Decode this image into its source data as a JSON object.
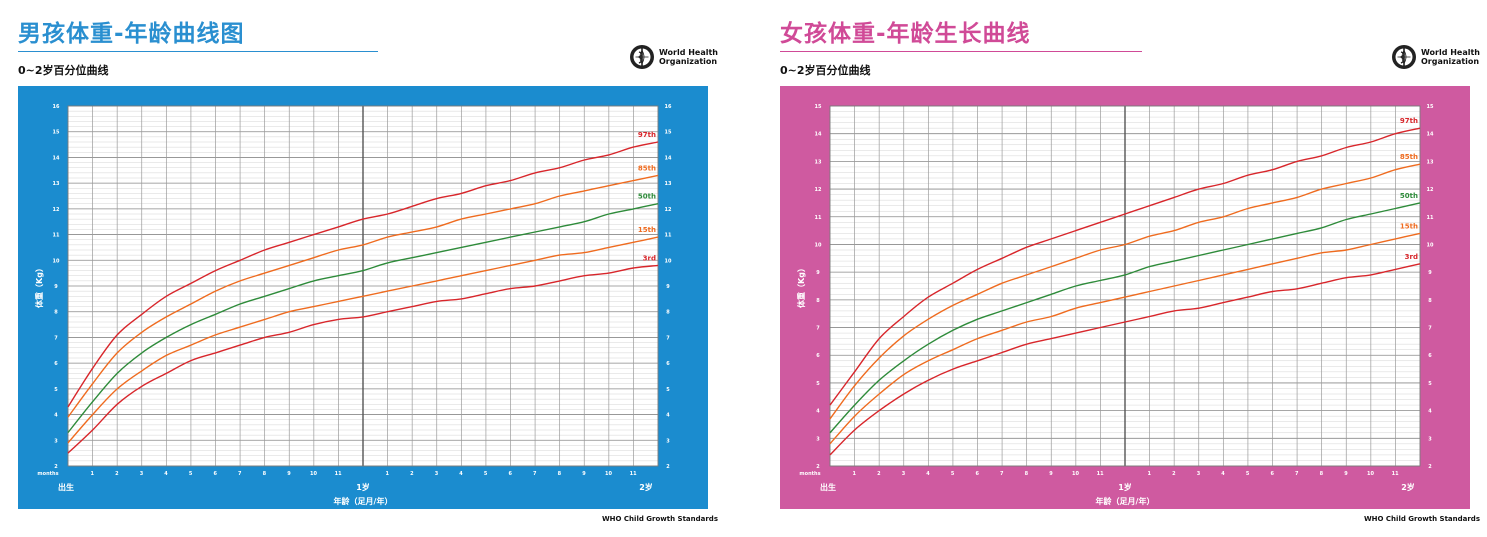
{
  "colors": {
    "boys_bg": "#1b8ccf",
    "girls_bg": "#cf5aa0",
    "boys_title": "#2a8fd0",
    "girls_title": "#d04a97",
    "p97": "#d8262b",
    "p85": "#ef6b1f",
    "p50": "#2e8b3a",
    "p15": "#ef6b1f",
    "p3": "#d8262b",
    "grid": "#9a9a9a"
  },
  "common": {
    "subtitle": "0~2岁百分位曲线",
    "who_line1": "World Health",
    "who_line2": "Organization",
    "footer": "WHO Child Growth Standards",
    "ylabel": "体重（Kg）",
    "xlabel": "年龄（足月/年）",
    "months_label": "months",
    "birth_label": "出生",
    "year1_label": "1岁",
    "year2_label": "2岁"
  },
  "boys": {
    "title": "男孩体重-年龄曲线图"
  },
  "girls": {
    "title": "女孩体重-年龄生长曲线"
  },
  "chart_data": [
    {
      "type": "line",
      "title": "男孩体重-年龄曲线图",
      "subtitle": "0~2岁百分位曲线",
      "xlabel": "年龄（足月/年）",
      "ylabel": "体重（Kg）",
      "x_unit": "months",
      "x": [
        0,
        1,
        2,
        3,
        4,
        5,
        6,
        7,
        8,
        9,
        10,
        11,
        12,
        13,
        14,
        15,
        16,
        17,
        18,
        19,
        20,
        21,
        22,
        23,
        24
      ],
      "xlim": [
        0,
        24
      ],
      "ylim": [
        2,
        16
      ],
      "yticks": [
        2,
        3,
        4,
        5,
        6,
        7,
        8,
        9,
        10,
        11,
        12,
        13,
        14,
        15,
        16
      ],
      "series": [
        {
          "name": "97th",
          "values": [
            4.3,
            5.8,
            7.1,
            7.9,
            8.6,
            9.1,
            9.6,
            10.0,
            10.4,
            10.7,
            11.0,
            11.3,
            11.6,
            11.8,
            12.1,
            12.4,
            12.6,
            12.9,
            13.1,
            13.4,
            13.6,
            13.9,
            14.1,
            14.4,
            14.6
          ]
        },
        {
          "name": "85th",
          "values": [
            3.9,
            5.2,
            6.4,
            7.2,
            7.8,
            8.3,
            8.8,
            9.2,
            9.5,
            9.8,
            10.1,
            10.4,
            10.6,
            10.9,
            11.1,
            11.3,
            11.6,
            11.8,
            12.0,
            12.2,
            12.5,
            12.7,
            12.9,
            13.1,
            13.3
          ]
        },
        {
          "name": "50th",
          "values": [
            3.3,
            4.5,
            5.6,
            6.4,
            7.0,
            7.5,
            7.9,
            8.3,
            8.6,
            8.9,
            9.2,
            9.4,
            9.6,
            9.9,
            10.1,
            10.3,
            10.5,
            10.7,
            10.9,
            11.1,
            11.3,
            11.5,
            11.8,
            12.0,
            12.2
          ]
        },
        {
          "name": "15th",
          "values": [
            2.9,
            4.0,
            5.0,
            5.7,
            6.3,
            6.7,
            7.1,
            7.4,
            7.7,
            8.0,
            8.2,
            8.4,
            8.6,
            8.8,
            9.0,
            9.2,
            9.4,
            9.6,
            9.8,
            10.0,
            10.2,
            10.3,
            10.5,
            10.7,
            10.9
          ]
        },
        {
          "name": "3rd",
          "values": [
            2.5,
            3.4,
            4.4,
            5.1,
            5.6,
            6.1,
            6.4,
            6.7,
            7.0,
            7.2,
            7.5,
            7.7,
            7.8,
            8.0,
            8.2,
            8.4,
            8.5,
            8.7,
            8.9,
            9.0,
            9.2,
            9.4,
            9.5,
            9.7,
            9.8
          ]
        }
      ]
    },
    {
      "type": "line",
      "title": "女孩体重-年龄生长曲线",
      "subtitle": "0~2岁百分位曲线",
      "xlabel": "年龄（足月/年）",
      "ylabel": "体重（Kg）",
      "x_unit": "months",
      "x": [
        0,
        1,
        2,
        3,
        4,
        5,
        6,
        7,
        8,
        9,
        10,
        11,
        12,
        13,
        14,
        15,
        16,
        17,
        18,
        19,
        20,
        21,
        22,
        23,
        24
      ],
      "xlim": [
        0,
        24
      ],
      "ylim": [
        2,
        15
      ],
      "yticks": [
        2,
        3,
        4,
        5,
        6,
        7,
        8,
        9,
        10,
        11,
        12,
        13,
        14,
        15
      ],
      "series": [
        {
          "name": "97th",
          "values": [
            4.2,
            5.4,
            6.6,
            7.4,
            8.1,
            8.6,
            9.1,
            9.5,
            9.9,
            10.2,
            10.5,
            10.8,
            11.1,
            11.4,
            11.7,
            12.0,
            12.2,
            12.5,
            12.7,
            13.0,
            13.2,
            13.5,
            13.7,
            14.0,
            14.2
          ]
        },
        {
          "name": "85th",
          "values": [
            3.7,
            4.9,
            5.9,
            6.7,
            7.3,
            7.8,
            8.2,
            8.6,
            8.9,
            9.2,
            9.5,
            9.8,
            10.0,
            10.3,
            10.5,
            10.8,
            11.0,
            11.3,
            11.5,
            11.7,
            12.0,
            12.2,
            12.4,
            12.7,
            12.9
          ]
        },
        {
          "name": "50th",
          "values": [
            3.2,
            4.2,
            5.1,
            5.8,
            6.4,
            6.9,
            7.3,
            7.6,
            7.9,
            8.2,
            8.5,
            8.7,
            8.9,
            9.2,
            9.4,
            9.6,
            9.8,
            10.0,
            10.2,
            10.4,
            10.6,
            10.9,
            11.1,
            11.3,
            11.5
          ]
        },
        {
          "name": "15th",
          "values": [
            2.8,
            3.8,
            4.6,
            5.3,
            5.8,
            6.2,
            6.6,
            6.9,
            7.2,
            7.4,
            7.7,
            7.9,
            8.1,
            8.3,
            8.5,
            8.7,
            8.9,
            9.1,
            9.3,
            9.5,
            9.7,
            9.8,
            10.0,
            10.2,
            10.4
          ]
        },
        {
          "name": "3rd",
          "values": [
            2.4,
            3.3,
            4.0,
            4.6,
            5.1,
            5.5,
            5.8,
            6.1,
            6.4,
            6.6,
            6.8,
            7.0,
            7.2,
            7.4,
            7.6,
            7.7,
            7.9,
            8.1,
            8.3,
            8.4,
            8.6,
            8.8,
            8.9,
            9.1,
            9.3
          ]
        }
      ]
    }
  ]
}
